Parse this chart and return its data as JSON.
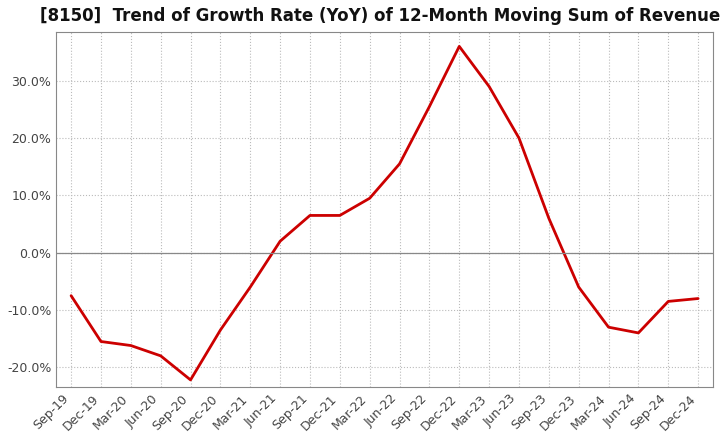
{
  "title": "[8150]  Trend of Growth Rate (YoY) of 12-Month Moving Sum of Revenues",
  "line_color": "#cc0000",
  "background_color": "#ffffff",
  "grid_color": "#bbbbbb",
  "ylim": [
    -0.235,
    0.385
  ],
  "yticks": [
    -0.2,
    -0.1,
    0.0,
    0.1,
    0.2,
    0.3
  ],
  "x_labels": [
    "Sep-19",
    "Dec-19",
    "Mar-20",
    "Jun-20",
    "Sep-20",
    "Dec-20",
    "Mar-21",
    "Jun-21",
    "Sep-21",
    "Dec-21",
    "Mar-22",
    "Jun-22",
    "Sep-22",
    "Dec-22",
    "Mar-23",
    "Jun-23",
    "Sep-23",
    "Dec-23",
    "Mar-24",
    "Jun-24",
    "Sep-24",
    "Dec-24"
  ],
  "y_values": [
    -0.075,
    -0.155,
    -0.162,
    -0.18,
    -0.222,
    -0.135,
    -0.06,
    0.02,
    0.065,
    0.065,
    0.095,
    0.155,
    0.255,
    0.36,
    0.29,
    0.2,
    0.06,
    -0.06,
    -0.13,
    -0.14,
    -0.085,
    -0.08
  ],
  "title_fontsize": 12,
  "tick_fontsize": 9
}
